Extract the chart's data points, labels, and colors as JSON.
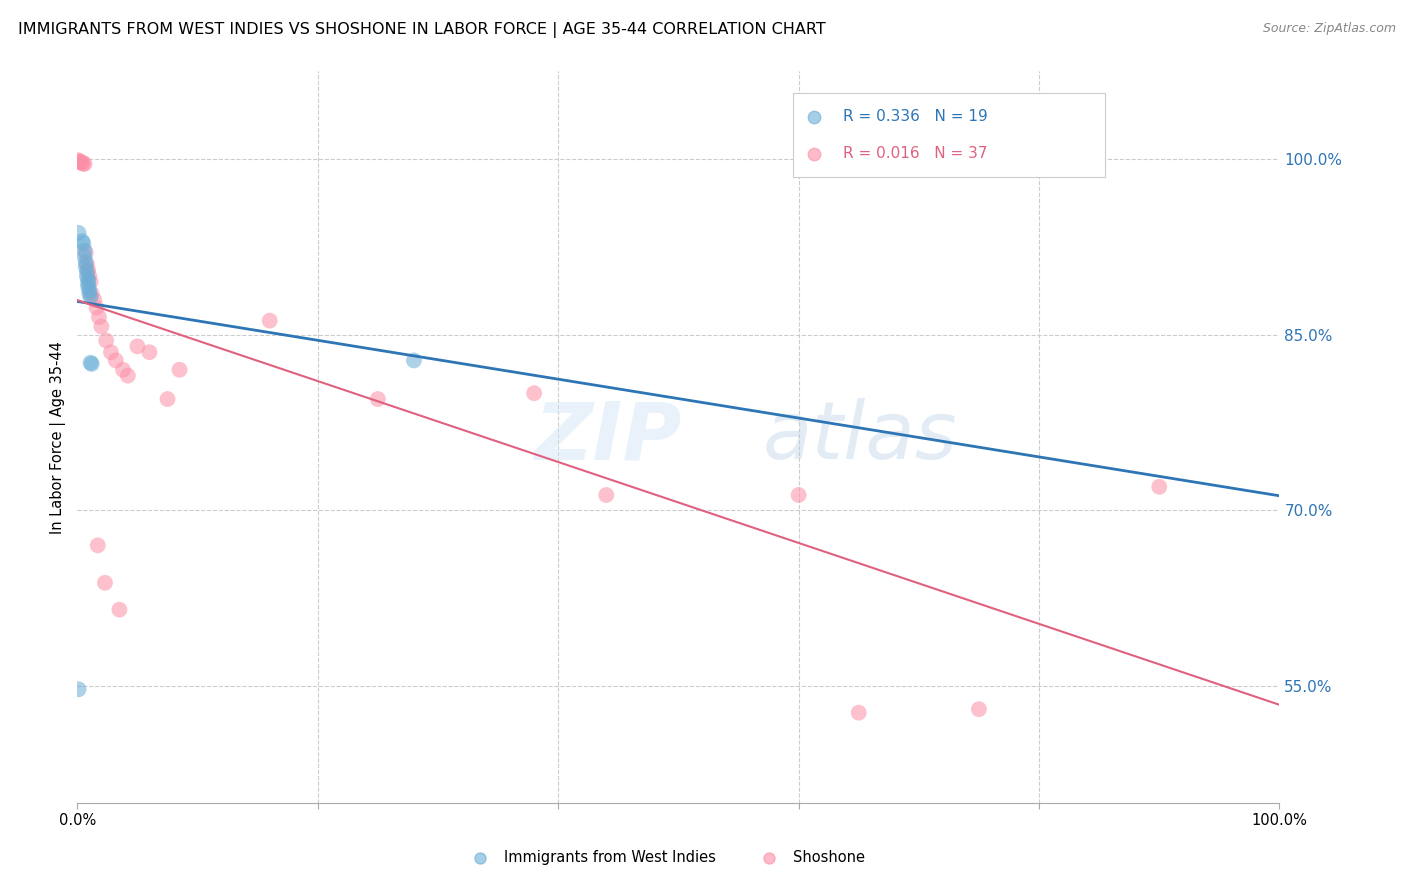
{
  "title": "IMMIGRANTS FROM WEST INDIES VS SHOSHONE IN LABOR FORCE | AGE 35-44 CORRELATION CHART",
  "source": "Source: ZipAtlas.com",
  "ylabel": "In Labor Force | Age 35-44",
  "legend_label1": "Immigrants from West Indies",
  "legend_label2": "Shoshone",
  "r1": "0.336",
  "n1": "19",
  "r2": "0.016",
  "n2": "37",
  "color_blue": "#6BAED6",
  "color_pink": "#FC8FA7",
  "color_trendline_blue": "#2E75B6",
  "color_trendline_pink": "#E06080",
  "watermark_zip": "ZIP",
  "watermark_atlas": "atlas",
  "blue_x": [
    0.001,
    0.004,
    0.005,
    0.006,
    0.006,
    0.007,
    0.007,
    0.008,
    0.008,
    0.009,
    0.009,
    0.009,
    0.01,
    0.01,
    0.011,
    0.011,
    0.012,
    0.28,
    0.001
  ],
  "blue_y": [
    0.937,
    0.93,
    0.928,
    0.922,
    0.917,
    0.912,
    0.908,
    0.904,
    0.9,
    0.897,
    0.894,
    0.891,
    0.888,
    0.885,
    0.882,
    0.826,
    0.825,
    0.828,
    0.547
  ],
  "pink_x": [
    0.001,
    0.001,
    0.002,
    0.003,
    0.004,
    0.005,
    0.006,
    0.007,
    0.008,
    0.009,
    0.01,
    0.011,
    0.012,
    0.014,
    0.016,
    0.018,
    0.02,
    0.024,
    0.028,
    0.032,
    0.038,
    0.042,
    0.05,
    0.06,
    0.075,
    0.085,
    0.16,
    0.25,
    0.38,
    0.44,
    0.6,
    0.65,
    0.75,
    0.9,
    0.017,
    0.023,
    0.035
  ],
  "pink_y": [
    0.999,
    0.998,
    0.998,
    0.997,
    0.997,
    0.996,
    0.996,
    0.92,
    0.91,
    0.905,
    0.9,
    0.895,
    0.885,
    0.88,
    0.873,
    0.865,
    0.857,
    0.845,
    0.835,
    0.828,
    0.82,
    0.815,
    0.84,
    0.835,
    0.795,
    0.82,
    0.862,
    0.795,
    0.8,
    0.713,
    0.713,
    0.527,
    0.53,
    0.72,
    0.67,
    0.638,
    0.615
  ]
}
